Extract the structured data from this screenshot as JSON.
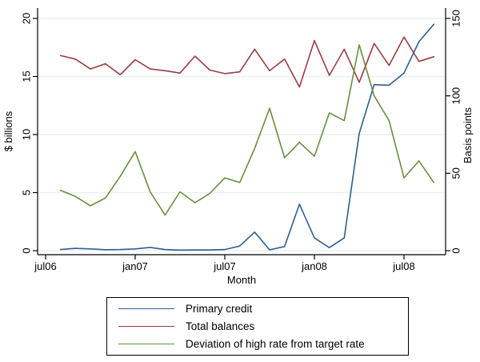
{
  "figure": {
    "xlabel": "Month",
    "ylabel_left": "$ billions",
    "ylabel_right": "Basis points"
  },
  "chart_data": {
    "type": "line",
    "title": "",
    "xlabel": "Month",
    "ylabel_left": "$ billions",
    "ylabel_right": "Basis points",
    "x_months": [
      "aug06",
      "sep06",
      "oct06",
      "nov06",
      "dec06",
      "jan07",
      "feb07",
      "mar07",
      "apr07",
      "may07",
      "jun07",
      "jul07",
      "aug07",
      "sep07",
      "oct07",
      "nov07",
      "dec07",
      "jan08",
      "feb08",
      "mar08",
      "apr08",
      "may08",
      "jun08",
      "jul08",
      "aug08",
      "sep08"
    ],
    "x_axis_ticks": [
      {
        "label": "jul06",
        "month_index": 0
      },
      {
        "label": "jan07",
        "month_index": 6
      },
      {
        "label": "jul07",
        "month_index": 12
      },
      {
        "label": "jan08",
        "month_index": 18
      },
      {
        "label": "jul08",
        "month_index": 24
      }
    ],
    "left_axis": {
      "ticks": [
        0,
        5,
        10,
        15,
        20
      ],
      "min": 0,
      "max": 20,
      "unit": "$ billions"
    },
    "right_axis": {
      "ticks": [
        0,
        50,
        100,
        150
      ],
      "min": 0,
      "max": 150,
      "unit": "Basis points"
    },
    "grid": "horizontal, pale blue-grey, at left-axis ticks",
    "legend_position": "bottom-center, boxed",
    "series": [
      {
        "name": "Primary credit",
        "axis": "left",
        "color": "#2e5f8f",
        "values": [
          0.1,
          0.2,
          0.15,
          0.08,
          0.1,
          0.15,
          0.28,
          0.1,
          0.05,
          0.06,
          0.06,
          0.1,
          0.4,
          1.6,
          0.07,
          0.36,
          4.0,
          1.1,
          0.26,
          1.1,
          10.1,
          14.3,
          14.25,
          15.3,
          18.0,
          19.5
        ]
      },
      {
        "name": "Total balances",
        "axis": "left",
        "color": "#9a3d42",
        "values": [
          16.8,
          16.5,
          15.65,
          16.1,
          15.15,
          16.45,
          15.65,
          15.5,
          15.3,
          16.75,
          15.55,
          15.25,
          15.4,
          17.35,
          15.5,
          16.5,
          14.1,
          18.1,
          15.1,
          17.35,
          14.5,
          17.85,
          15.95,
          18.4,
          16.3,
          16.7
        ]
      },
      {
        "name": "Deviation of high rate from target rate",
        "axis": "right",
        "color": "#688f3f",
        "values": [
          39,
          35,
          29,
          34,
          48,
          64,
          38,
          23,
          38,
          31,
          37,
          47,
          44,
          66,
          92,
          60,
          70,
          61,
          89,
          84,
          133,
          100,
          84,
          47,
          58,
          44
        ]
      }
    ],
    "style": {
      "gridline_color": "#e9f1f0",
      "axis_color": "#000000",
      "text_color": "#000000",
      "background": "#ffffff"
    }
  }
}
